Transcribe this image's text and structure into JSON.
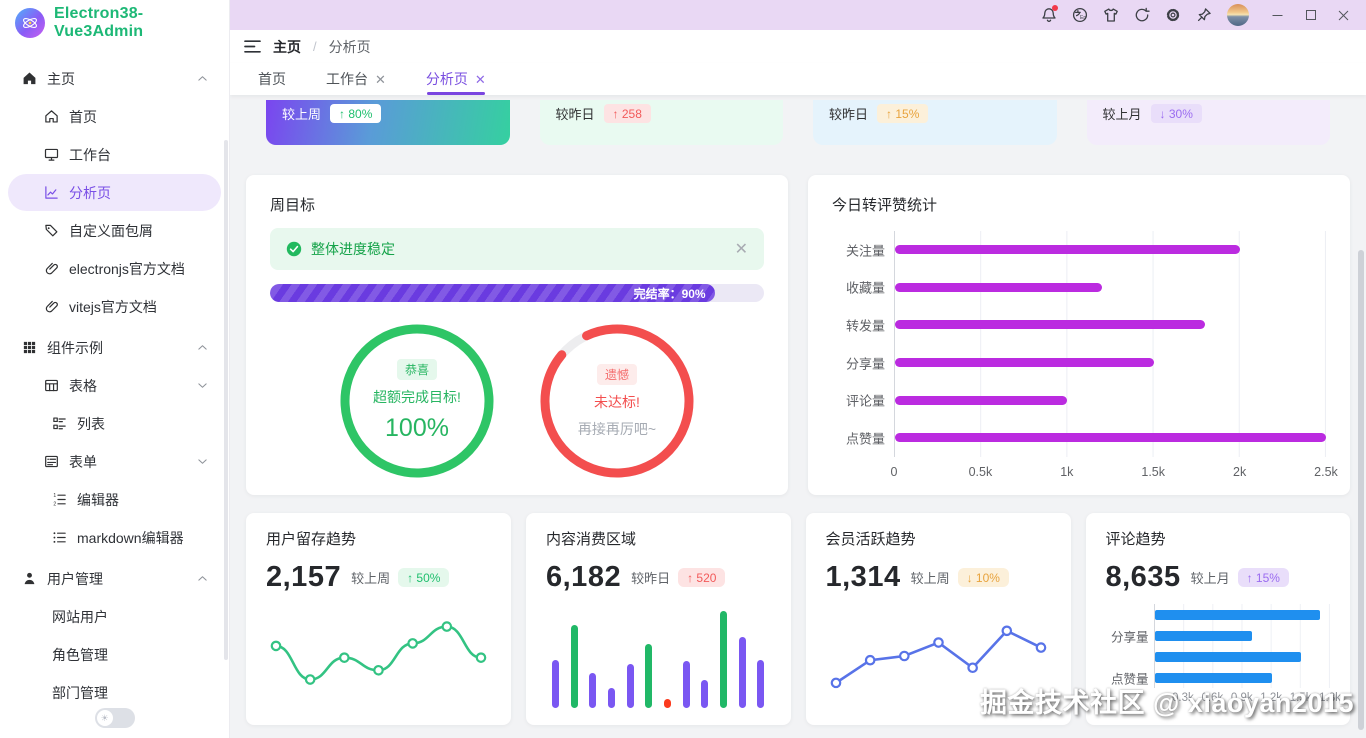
{
  "sidebar": {
    "logo_text": "Electron38-Vue3Admin",
    "logo_color": "#1db876",
    "items": [
      {
        "label": "主页",
        "icon": "home-filled-icon",
        "level": 0,
        "chevron": "up"
      },
      {
        "label": "首页",
        "icon": "home-outline-icon",
        "level": 1
      },
      {
        "label": "工作台",
        "icon": "monitor-icon",
        "level": 1
      },
      {
        "label": "分析页",
        "icon": "trend-chart-icon",
        "level": 1,
        "active": true
      },
      {
        "label": "自定义面包屑",
        "icon": "tag-icon",
        "level": 1
      },
      {
        "label": "electronjs官方文档",
        "icon": "link-icon",
        "level": 1
      },
      {
        "label": "vitejs官方文档",
        "icon": "link-icon",
        "level": 1
      },
      {
        "label": "组件示例",
        "icon": "grid-icon",
        "level": 0,
        "chevron": "up"
      },
      {
        "label": "表格",
        "icon": "table-icon",
        "level": 1,
        "chevron": "down"
      },
      {
        "label": "列表",
        "icon": "list-check-icon",
        "level": 2
      },
      {
        "label": "表单",
        "icon": "form-icon",
        "level": 1,
        "chevron": "down"
      },
      {
        "label": "编辑器",
        "icon": "ordered-list-icon",
        "level": 2
      },
      {
        "label": "markdown编辑器",
        "icon": "unordered-list-icon",
        "level": 2
      },
      {
        "label": "用户管理",
        "icon": "user-icon",
        "level": 0,
        "chevron": "up"
      },
      {
        "label": "网站用户",
        "level": 2
      },
      {
        "label": "角色管理",
        "level": 2
      },
      {
        "label": "部门管理",
        "level": 2
      }
    ]
  },
  "titlebar": {
    "icons": [
      {
        "name": "bell-icon",
        "badge": true
      },
      {
        "name": "language-icon"
      },
      {
        "name": "theme-skin-icon"
      },
      {
        "name": "refresh-icon"
      },
      {
        "name": "settings-icon"
      },
      {
        "name": "pin-icon"
      }
    ],
    "window_controls": [
      "minimize",
      "maximize",
      "close"
    ]
  },
  "header": {
    "breadcrumb": [
      "主页",
      "分析页"
    ],
    "separator": "/"
  },
  "tabs": [
    {
      "label": "首页"
    },
    {
      "label": "工作台",
      "closable": true
    },
    {
      "label": "分析页",
      "closable": true,
      "active": true
    }
  ],
  "overview_cards": [
    {
      "compare_label": "较上周",
      "badge": "↑ 80%",
      "style": "gradient",
      "pill": "white"
    },
    {
      "compare_label": "较昨日",
      "badge": "↑ 258",
      "style": "green",
      "pill": "red"
    },
    {
      "compare_label": "较昨日",
      "badge": "↑ 15%",
      "style": "blue",
      "pill": "orange"
    },
    {
      "compare_label": "较上月",
      "badge": "↓ 30%",
      "style": "purple",
      "pill": "violet"
    }
  ],
  "weekly_goal": {
    "title": "周目标",
    "alert_text": "整体进度稳定",
    "progress_percent": 90,
    "progress_label": "完结率：90%",
    "progress_color": "#6a3be0",
    "gauges": [
      {
        "badge": "恭喜",
        "line1": "超额完成目标!",
        "line2": "100%",
        "percent": 100,
        "color": "#2ec566",
        "theme": "green"
      },
      {
        "badge": "遗憾",
        "line1": "未达标!",
        "line2": "再接再厉吧~",
        "percent": 93,
        "color": "#f34e4e",
        "theme": "red"
      }
    ]
  },
  "chart_data": [
    {
      "id": "engagement",
      "type": "bar",
      "orientation": "horizontal",
      "title": "今日转评赞统计",
      "categories": [
        "关注量",
        "收藏量",
        "转发量",
        "分享量",
        "评论量",
        "点赞量"
      ],
      "values": [
        2000,
        1200,
        1800,
        1500,
        1000,
        2500
      ],
      "xticks": [
        "0",
        "0.5k",
        "1k",
        "1.5k",
        "2k",
        "2.5k"
      ],
      "xmax": 2500,
      "bar_color": "#bb2be0",
      "grid": true,
      "legend": "none"
    },
    {
      "id": "retention",
      "type": "line",
      "smooth": true,
      "title": "用户留存趋势",
      "stat": "2,157",
      "compare_label": "较上周",
      "badge": "↑ 50%",
      "pill": "green",
      "values": [
        62,
        22,
        48,
        33,
        65,
        85,
        48
      ],
      "color": "#33c383"
    },
    {
      "id": "consumption",
      "type": "bar",
      "orientation": "vertical",
      "title": "内容消费区域",
      "stat": "6,182",
      "compare_label": "较昨日",
      "badge": "↑ 520",
      "pill": "red",
      "values": [
        46,
        80,
        34,
        19,
        42,
        62,
        9,
        45,
        27,
        93,
        68,
        46
      ],
      "colors": [
        "#7a57f2",
        "#21b867",
        "#7a57f2",
        "#7a57f2",
        "#7a57f2",
        "#21b867",
        "#fb3b1e",
        "#7a57f2",
        "#7a57f2",
        "#21b867",
        "#7a57f2",
        "#7a57f2"
      ]
    },
    {
      "id": "member",
      "type": "line",
      "smooth": false,
      "title": "会员活跃趋势",
      "stat": "1,314",
      "compare_label": "较上周",
      "badge": "↓ 10%",
      "pill": "orange",
      "values": [
        18,
        45,
        50,
        66,
        36,
        80,
        60
      ],
      "color": "#5873e8"
    },
    {
      "id": "comments",
      "type": "bar",
      "orientation": "horizontal",
      "title": "评论趋势",
      "stat": "8,635",
      "compare_label": "较上月",
      "badge": "↑ 15%",
      "pill": "violet",
      "categories": [
        "",
        "分享量",
        "",
        "点赞量"
      ],
      "values": [
        1700,
        1000,
        1500,
        1200
      ],
      "xticks": [
        "0.3k",
        "0.6k",
        "0.9k",
        "1.2k",
        "1.5k",
        "1.8k"
      ],
      "xmax": 1800,
      "bar_color": "#1f8fef",
      "grid": true
    }
  ],
  "watermark": "掘金技术社区 @ xiaoyan2015"
}
